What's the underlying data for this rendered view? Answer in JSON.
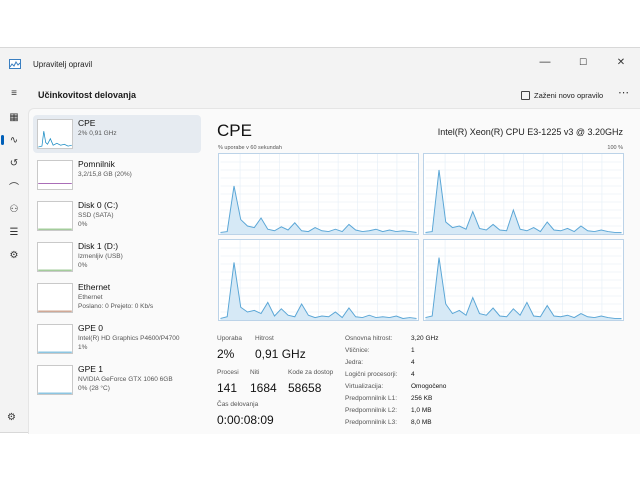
{
  "window": {
    "title": "Upravitelj opravil"
  },
  "controls": {
    "minimize": "—",
    "maximize": "☐",
    "close": "✕"
  },
  "nav": [
    {
      "name": "nav-menu-icon",
      "glyph": "≡"
    },
    {
      "name": "nav-processes-icon",
      "glyph": "▦"
    },
    {
      "name": "nav-performance-icon",
      "glyph": "∿"
    },
    {
      "name": "nav-history-icon",
      "glyph": "↺"
    },
    {
      "name": "nav-startup-icon",
      "glyph": "⌒"
    },
    {
      "name": "nav-users-icon",
      "glyph": "⚇"
    },
    {
      "name": "nav-details-icon",
      "glyph": "☰"
    },
    {
      "name": "nav-services-icon",
      "glyph": "⚙"
    }
  ],
  "header": {
    "title": "Učinkovitost delovanja",
    "run_task": "Zaženi novo opravilo",
    "more": "⋯"
  },
  "resources": [
    {
      "name": "CPE",
      "sub1": "2%  0,91 GHz",
      "sub2": "",
      "color": "#1a8cc4"
    },
    {
      "name": "Pomnilnik",
      "sub1": "3,2/15,8 GB (20%)",
      "sub2": "",
      "color": "#8e3fa0"
    },
    {
      "name": "Disk 0 (C:)",
      "sub1": "SSD (SATA)",
      "sub2": "0%",
      "color": "#4a9a3a"
    },
    {
      "name": "Disk 1 (D:)",
      "sub1": "Izmenljiv (USB)",
      "sub2": "0%",
      "color": "#4a9a3a"
    },
    {
      "name": "Ethernet",
      "sub1": "Ethernet",
      "sub2": "Poslano: 0 Prejeto: 0 Kb/s",
      "color": "#a0522d"
    },
    {
      "name": "GPE 0",
      "sub1": "Intel(R) HD Graphics P4600/P4700",
      "sub2": "1%",
      "color": "#1a8cc4"
    },
    {
      "name": "GPE 1",
      "sub1": "NVIDIA GeForce GTX 1060 6GB",
      "sub2": "0% (28 °C)",
      "color": "#1a8cc4"
    }
  ],
  "detail": {
    "title": "CPE",
    "model": "Intel(R) Xeon(R) CPU E3-1225 v3 @ 3.20GHz",
    "axis_left": "% uporabe v 60 sekundah",
    "axis_right": "100 %",
    "chart_color": "#5aa6d6",
    "stats": {
      "usage_label": "Uporaba",
      "usage": "2%",
      "speed_label": "Hitrost",
      "speed": "0,91 GHz",
      "processes_label": "Procesi",
      "processes": "141",
      "threads_label": "Niti",
      "threads": "1684",
      "handles_label": "Kode za dostop",
      "handles": "58658",
      "uptime_label": "Čas delovanja",
      "uptime": "0:00:08:09"
    },
    "specs": [
      {
        "k": "Osnovna hitrost:",
        "v": "3,20 GHz"
      },
      {
        "k": "Vtičnice:",
        "v": "1"
      },
      {
        "k": "Jedra:",
        "v": "4"
      },
      {
        "k": "Logični procesorji:",
        "v": "4"
      },
      {
        "k": "Virtualizacija:",
        "v": "Omogočeno"
      },
      {
        "k": "Predpomnilnik L1:",
        "v": "256 KB"
      },
      {
        "k": "Predpomnilnik L2:",
        "v": "1,0 MB"
      },
      {
        "k": "Predpomnilnik L3:",
        "v": "8,0 MB"
      }
    ]
  },
  "chart_data": {
    "type": "area",
    "x": [
      0,
      1,
      2,
      3,
      4,
      5,
      6,
      7,
      8,
      9,
      10,
      11,
      12,
      13,
      14,
      15,
      16,
      17,
      18,
      19,
      20,
      21,
      22,
      23,
      24,
      25,
      26,
      27,
      28,
      29
    ],
    "series": [
      {
        "values": [
          2,
          3,
          60,
          18,
          10,
          8,
          20,
          6,
          4,
          9,
          5,
          14,
          4,
          3,
          8,
          4,
          3,
          6,
          3,
          12,
          5,
          3,
          4,
          6,
          3,
          5,
          3,
          4,
          3,
          2
        ]
      },
      {
        "values": [
          2,
          3,
          80,
          15,
          8,
          10,
          6,
          28,
          7,
          5,
          12,
          5,
          4,
          30,
          6,
          4,
          8,
          3,
          15,
          5,
          4,
          7,
          3,
          10,
          4,
          3,
          5,
          3,
          2,
          2
        ]
      },
      {
        "values": [
          2,
          4,
          72,
          16,
          10,
          12,
          8,
          22,
          5,
          14,
          6,
          4,
          20,
          6,
          3,
          5,
          4,
          10,
          3,
          15,
          4,
          3,
          6,
          3,
          4,
          3,
          5,
          2,
          3,
          2
        ]
      },
      {
        "values": [
          3,
          5,
          78,
          20,
          8,
          12,
          6,
          28,
          8,
          6,
          15,
          5,
          4,
          14,
          6,
          22,
          5,
          4,
          18,
          5,
          4,
          6,
          3,
          8,
          4,
          3,
          5,
          3,
          2,
          2
        ]
      }
    ],
    "ylim": [
      0,
      100
    ]
  }
}
